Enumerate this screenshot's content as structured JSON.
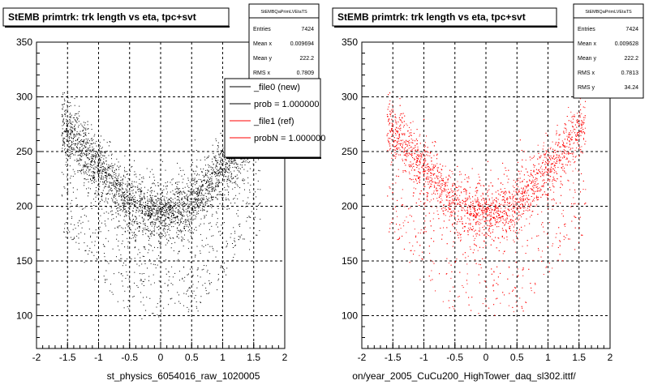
{
  "footer_note": "",
  "chart_data": [
    {
      "type": "scatter",
      "title": "StEMB primtrk: trk length vs eta, tpc+svt",
      "xlabel": "st_physics_6054016_raw_1020005",
      "ylabel": "",
      "xlim": [
        -2,
        2
      ],
      "ylim": [
        70,
        350
      ],
      "xticks": [
        "-2",
        "-1.5",
        "-1",
        "-0.5",
        "0",
        "0.5",
        "1",
        "1.5",
        "2"
      ],
      "yticks": [
        "100",
        "150",
        "200",
        "250",
        "300",
        "350"
      ],
      "grid": true,
      "point_color": "#000000",
      "stats": {
        "name": "StEMBQaPrimLVEtaTS",
        "rows": [
          {
            "label": "Entries",
            "value": "7424"
          },
          {
            "label": "Mean x",
            "value": "0.009694"
          },
          {
            "label": "Mean y",
            "value": "222.2"
          },
          {
            "label": "RMS x",
            "value": "0.7809"
          }
        ]
      },
      "legend": {
        "placement": "top-right",
        "entries": [
          {
            "label": "_file0 (new)",
            "color": "#000000"
          },
          {
            "label": "prob = 1.000000",
            "color": "#000000"
          },
          {
            "label": "_file1 (ref)",
            "color": "#ff0000"
          },
          {
            "label": "probN = 1.000000",
            "color": "#ff0000"
          }
        ]
      }
    },
    {
      "type": "scatter",
      "title": "StEMB primtrk: trk length vs eta, tpc+svt",
      "xlabel": "on/year_2005_CuCu200_HighTower_daq_sl302.ittf/",
      "ylabel": "",
      "xlim": [
        -2,
        2
      ],
      "ylim": [
        70,
        350
      ],
      "xticks": [
        "-2",
        "-1.5",
        "-1",
        "-0.5",
        "0",
        "0.5",
        "1",
        "1.5",
        "2"
      ],
      "yticks": [
        "100",
        "150",
        "200",
        "250",
        "300",
        "350"
      ],
      "grid": true,
      "point_color": "#ff0000",
      "stats": {
        "name": "StEMBQaPrimLVEtaTS",
        "rows": [
          {
            "label": "Entries",
            "value": "7424"
          },
          {
            "label": "Mean x",
            "value": "0.009628"
          },
          {
            "label": "Mean y",
            "value": "222.2"
          },
          {
            "label": "RMS x",
            "value": "0.7813"
          },
          {
            "label": "RMS y",
            "value": "34.24"
          }
        ]
      }
    }
  ]
}
